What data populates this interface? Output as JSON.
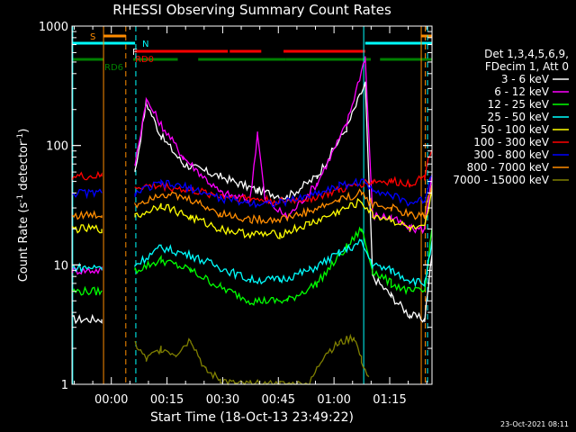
{
  "chart_data": {
    "type": "line",
    "title": "RHESSI Observing Summary Count Rates",
    "xlabel": "Start Time (18-Oct-13 23:49:22)",
    "ylabel_parts": [
      "Count Rate (s",
      "-1",
      " detector",
      "-1",
      ")"
    ],
    "y_scale": "log",
    "ylim": [
      1,
      1000
    ],
    "xlim_minutes": [
      0,
      97
    ],
    "x_ticks": [
      {
        "label": "00:00",
        "min": 10.6
      },
      {
        "label": "00:15",
        "min": 25.6
      },
      {
        "label": "00:30",
        "min": 40.6
      },
      {
        "label": "00:45",
        "min": 55.6
      },
      {
        "label": "01:00",
        "min": 70.6
      },
      {
        "label": "01:15",
        "min": 85.6
      }
    ],
    "y_major_ticks": [
      {
        "label": "1",
        "value": 1
      },
      {
        "label": "10",
        "value": 10
      },
      {
        "label": "100",
        "value": 100
      },
      {
        "label": "1000",
        "value": 1000
      }
    ],
    "legend_header": [
      "Det 1,3,4,5,6,9,",
      "FDecim 1, Att 0"
    ],
    "series": [
      {
        "name": "3 - 6 keV",
        "color": "#ffffff",
        "points": [
          [
            0,
            3.5
          ],
          [
            8,
            3.5
          ],
          [
            17,
            60
          ],
          [
            20,
            230
          ],
          [
            24,
            120
          ],
          [
            30,
            70
          ],
          [
            40,
            55
          ],
          [
            50,
            42
          ],
          [
            58,
            37
          ],
          [
            66,
            55
          ],
          [
            74,
            140
          ],
          [
            79,
            330
          ],
          [
            81,
            8
          ],
          [
            86,
            5.5
          ],
          [
            91,
            3.8
          ],
          [
            95,
            3.5
          ],
          [
            97,
            12
          ]
        ]
      },
      {
        "name": "6 - 12 keV",
        "color": "#ff00ff",
        "points": [
          [
            0,
            9
          ],
          [
            8,
            9
          ],
          [
            17,
            70
          ],
          [
            20,
            240
          ],
          [
            24,
            150
          ],
          [
            30,
            80
          ],
          [
            40,
            40
          ],
          [
            48,
            35
          ],
          [
            50,
            130
          ],
          [
            52,
            35
          ],
          [
            58,
            25
          ],
          [
            66,
            48
          ],
          [
            74,
            150
          ],
          [
            79,
            550
          ],
          [
            81,
            26
          ],
          [
            86,
            25
          ],
          [
            91,
            20
          ],
          [
            95,
            20
          ],
          [
            97,
            60
          ]
        ]
      },
      {
        "name": "12 - 25 keV",
        "color": "#00ff00",
        "points": [
          [
            0,
            6
          ],
          [
            8,
            6
          ],
          [
            17,
            9
          ],
          [
            24,
            11
          ],
          [
            32,
            9
          ],
          [
            40,
            6.5
          ],
          [
            48,
            5
          ],
          [
            58,
            5
          ],
          [
            66,
            7
          ],
          [
            74,
            14
          ],
          [
            78,
            20
          ],
          [
            81,
            9
          ],
          [
            86,
            7
          ],
          [
            91,
            6
          ],
          [
            95,
            6
          ],
          [
            97,
            20
          ]
        ]
      },
      {
        "name": "25 - 50 keV",
        "color": "#00ffff",
        "points": [
          [
            0,
            9.5
          ],
          [
            8,
            9.5
          ],
          [
            17,
            10
          ],
          [
            24,
            14
          ],
          [
            32,
            12
          ],
          [
            40,
            9.5
          ],
          [
            48,
            7.5
          ],
          [
            56,
            7.5
          ],
          [
            64,
            9
          ],
          [
            72,
            12.5
          ],
          [
            78,
            15.5
          ],
          [
            81,
            10
          ],
          [
            86,
            9
          ],
          [
            91,
            7.5
          ],
          [
            95,
            7
          ],
          [
            97,
            15
          ]
        ]
      },
      {
        "name": "50 - 100 keV",
        "color": "#ffff00",
        "points": [
          [
            0,
            20
          ],
          [
            8,
            20
          ],
          [
            17,
            25
          ],
          [
            24,
            32
          ],
          [
            32,
            25
          ],
          [
            40,
            20
          ],
          [
            48,
            18
          ],
          [
            56,
            18
          ],
          [
            64,
            22
          ],
          [
            72,
            28
          ],
          [
            78,
            34
          ],
          [
            81,
            26
          ],
          [
            86,
            24
          ],
          [
            91,
            20
          ],
          [
            95,
            20
          ],
          [
            97,
            40
          ]
        ]
      },
      {
        "name": "100 - 300 keV",
        "color": "#ff0000",
        "points": [
          [
            0,
            55
          ],
          [
            8,
            55
          ],
          [
            17,
            45
          ],
          [
            24,
            46
          ],
          [
            32,
            42
          ],
          [
            40,
            38
          ],
          [
            48,
            36
          ],
          [
            56,
            34
          ],
          [
            64,
            36
          ],
          [
            72,
            42
          ],
          [
            78,
            48
          ],
          [
            81,
            50
          ],
          [
            86,
            50
          ],
          [
            91,
            48
          ],
          [
            95,
            55
          ],
          [
            97,
            100
          ]
        ]
      },
      {
        "name": "300 - 800 keV",
        "color": "#0000ff",
        "points": [
          [
            0,
            40
          ],
          [
            8,
            40
          ],
          [
            17,
            40
          ],
          [
            24,
            48
          ],
          [
            32,
            44
          ],
          [
            40,
            36
          ],
          [
            48,
            33
          ],
          [
            56,
            33
          ],
          [
            64,
            38
          ],
          [
            72,
            46
          ],
          [
            78,
            50
          ],
          [
            81,
            44
          ],
          [
            86,
            38
          ],
          [
            91,
            33
          ],
          [
            95,
            35
          ],
          [
            97,
            60
          ]
        ]
      },
      {
        "name": "800 - 7000 keV",
        "color": "#ff8c00",
        "points": [
          [
            0,
            26
          ],
          [
            8,
            26
          ],
          [
            17,
            32
          ],
          [
            24,
            40
          ],
          [
            32,
            35
          ],
          [
            40,
            27
          ],
          [
            48,
            24
          ],
          [
            56,
            24
          ],
          [
            64,
            28
          ],
          [
            72,
            35
          ],
          [
            78,
            40
          ],
          [
            81,
            32
          ],
          [
            86,
            30
          ],
          [
            91,
            26
          ],
          [
            95,
            26
          ],
          [
            97,
            50
          ]
        ]
      },
      {
        "name": "7000 - 15000 keV",
        "color": "#808000",
        "points": [
          [
            17,
            2.2
          ],
          [
            20,
            1.6
          ],
          [
            24,
            2.0
          ],
          [
            28,
            1.8
          ],
          [
            32,
            2.4
          ],
          [
            36,
            1.3
          ],
          [
            40,
            1.1
          ],
          [
            44,
            1.0
          ],
          [
            48,
            1.0
          ],
          [
            56,
            1.0
          ],
          [
            64,
            1.0
          ],
          [
            68,
            1.8
          ],
          [
            72,
            2.2
          ],
          [
            76,
            2.5
          ],
          [
            78,
            1.6
          ],
          [
            80,
            1.1
          ]
        ]
      }
    ],
    "annotations": {
      "S": {
        "color": "#ff8c00"
      },
      "N": {
        "color": "#00ffff"
      },
      "F": {
        "color": "#ffffff"
      },
      "RD0": {
        "color": "#ff0000"
      },
      "RD6": {
        "color": "#008000"
      }
    },
    "flag_bars": [
      {
        "label": "S",
        "color": "#ff8c00",
        "row": "S",
        "ranges": [
          [
            8.5,
            14.5
          ],
          [
            94,
            97
          ]
        ]
      },
      {
        "label": "N",
        "color": "#00ffff",
        "row": "N",
        "ranges": [
          [
            0,
            17
          ],
          [
            79,
            97
          ]
        ]
      },
      {
        "label": "RD0",
        "color": "#ff0000",
        "row": "RD0",
        "ranges": [
          [
            17,
            42
          ],
          [
            42.5,
            51
          ],
          [
            57,
            79
          ]
        ]
      },
      {
        "label": "RD6",
        "color": "#008000",
        "row": "RD6",
        "ranges": [
          [
            0,
            8.5
          ],
          [
            16.5,
            28.5
          ],
          [
            34,
            57.5
          ],
          [
            57.5,
            80.5
          ],
          [
            83,
            97
          ]
        ]
      }
    ],
    "vertical_lines": [
      {
        "color": "#00ffff",
        "min": 0.2,
        "style": "solid"
      },
      {
        "color": "#ff8c00",
        "min": 8.5,
        "style": "solid"
      },
      {
        "color": "#ff8c00",
        "min": 14.5,
        "style": "dashed"
      },
      {
        "color": "#00ffff",
        "min": 17.2,
        "style": "dashed"
      },
      {
        "color": "#00ffff",
        "min": 78.6,
        "style": "solid"
      },
      {
        "color": "#ff8c00",
        "min": 94.1,
        "style": "solid"
      },
      {
        "color": "#ff8c00",
        "min": 95.2,
        "style": "dashed"
      },
      {
        "color": "#00ffff",
        "min": 95.8,
        "style": "dashed"
      }
    ],
    "grid": false,
    "legend_position": "right"
  },
  "footer": {
    "date": "23-Oct-2021 08:11"
  }
}
